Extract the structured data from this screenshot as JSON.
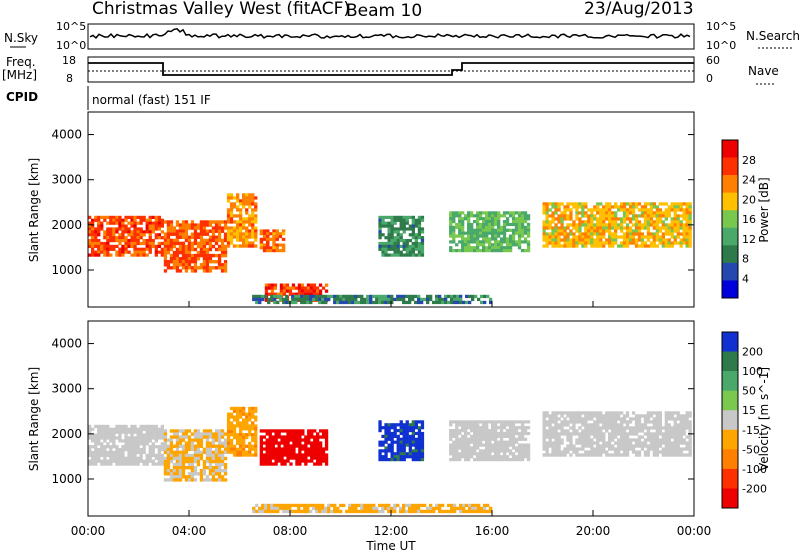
{
  "header": {
    "station": "Christmas Valley West (fitACF)",
    "beam": "Beam 10",
    "date": "23/Aug/2013"
  },
  "strips": {
    "nsky_label": "N.Sky",
    "nsky_ticks": [
      "10^5",
      "10^0"
    ],
    "nsearch_label": "N.Search",
    "freq_label": "Freq.",
    "freq_unit": "[MHz]",
    "freq_ticks": [
      "18",
      "8"
    ],
    "nave_label": "Nave",
    "nave_ticks": [
      "60",
      "0"
    ],
    "cpid_label": "CPID",
    "cpid_text": "normal (fast) 151 IF"
  },
  "colors": {
    "power": [
      "#0000dd",
      "#2448b0",
      "#2e7a4a",
      "#4aa86a",
      "#78c850",
      "#ffc000",
      "#ff8000",
      "#ff3000",
      "#ee0000"
    ],
    "velocity": [
      "#ee0000",
      "#ff3000",
      "#ff8000",
      "#ffa500",
      "#c8c8c8",
      "#7ac850",
      "#4aa86a",
      "#2e7a4a",
      "#1030d0"
    ]
  },
  "chart_data": [
    {
      "type": "heatmap",
      "title": "",
      "xlabel": "Time UT",
      "ylabel": "Slant Range [km]",
      "x_ticks": [
        "00:00",
        "04:00",
        "08:00",
        "12:00",
        "16:00",
        "20:00",
        "00:00"
      ],
      "x_range_hours": [
        0,
        24
      ],
      "y_ticks": [
        "1000",
        "2000",
        "3000",
        "4000"
      ],
      "y_range_km": [
        180,
        4500
      ],
      "colorbar": {
        "label": "Power [dB]",
        "ticks": [
          "28",
          "24",
          "20",
          "16",
          "12",
          "8",
          "4"
        ],
        "range": [
          0,
          32
        ]
      },
      "echo_regions": [
        {
          "t0": 0.0,
          "t1": 3.0,
          "r0": 1300,
          "r1": 2200,
          "level": 26
        },
        {
          "t0": 3.0,
          "t1": 5.5,
          "r0": 950,
          "r1": 2100,
          "level": 25
        },
        {
          "t0": 5.5,
          "t1": 6.7,
          "r0": 1500,
          "r1": 2700,
          "level": 22
        },
        {
          "t0": 6.8,
          "t1": 7.8,
          "r0": 1400,
          "r1": 1900,
          "level": 24
        },
        {
          "t0": 7.0,
          "t1": 9.5,
          "r0": 300,
          "r1": 700,
          "level": 27
        },
        {
          "t0": 11.5,
          "t1": 13.3,
          "r0": 1300,
          "r1": 2200,
          "level": 10
        },
        {
          "t0": 14.3,
          "t1": 17.5,
          "r0": 1400,
          "r1": 2300,
          "level": 14
        },
        {
          "t0": 18.0,
          "t1": 23.9,
          "r0": 1500,
          "r1": 2500,
          "level": 20
        },
        {
          "t0": 6.5,
          "t1": 16.0,
          "r0": 250,
          "r1": 450,
          "level": 9
        }
      ]
    },
    {
      "type": "heatmap",
      "title": "",
      "xlabel": "Time UT",
      "ylabel": "Slant Range [km]",
      "x_ticks": [
        "00:00",
        "04:00",
        "08:00",
        "12:00",
        "16:00",
        "20:00",
        "00:00"
      ],
      "x_range_hours": [
        0,
        24
      ],
      "y_ticks": [
        "1000",
        "2000",
        "3000",
        "4000"
      ],
      "y_range_km": [
        180,
        4500
      ],
      "colorbar": {
        "label": "Velocity [m s^-1]",
        "ticks": [
          "200",
          "100",
          "50",
          "15",
          "-15",
          "-50",
          "-100",
          "-200"
        ],
        "range": [
          -250,
          250
        ]
      },
      "echo_regions": [
        {
          "t0": 0.0,
          "t1": 3.0,
          "r0": 1300,
          "r1": 2200,
          "level": 0
        },
        {
          "t0": 3.0,
          "t1": 5.5,
          "r0": 950,
          "r1": 2100,
          "level": -30
        },
        {
          "t0": 5.5,
          "t1": 6.7,
          "r0": 1500,
          "r1": 2600,
          "level": -70
        },
        {
          "t0": 6.8,
          "t1": 9.5,
          "r0": 1300,
          "r1": 2100,
          "level": -220
        },
        {
          "t0": 6.5,
          "t1": 16.0,
          "r0": 250,
          "r1": 450,
          "level": -40
        },
        {
          "t0": 11.5,
          "t1": 13.3,
          "r0": 1400,
          "r1": 2300,
          "level": 210
        },
        {
          "t0": 14.3,
          "t1": 17.5,
          "r0": 1400,
          "r1": 2300,
          "level": 0
        },
        {
          "t0": 18.0,
          "t1": 23.9,
          "r0": 1500,
          "r1": 2500,
          "level": 0
        }
      ]
    }
  ]
}
